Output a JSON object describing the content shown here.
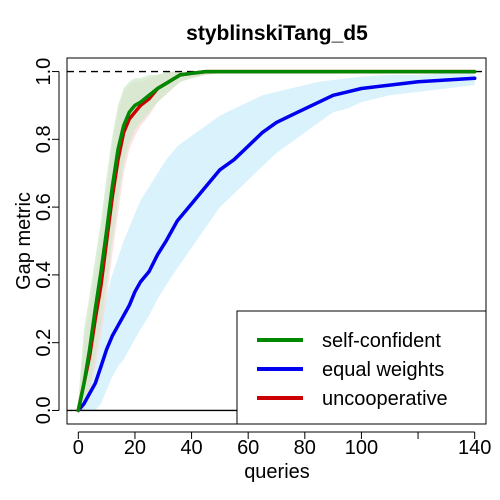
{
  "chart_data": {
    "type": "line",
    "title": "styblinskiTang_d5",
    "xlabel": "queries",
    "ylabel": "Gap metric",
    "xlim": [
      -4,
      144
    ],
    "ylim": [
      -0.04,
      1.04
    ],
    "xticks": [
      0,
      20,
      40,
      60,
      80,
      100,
      140
    ],
    "xtick_marks": [
      0,
      20,
      40,
      60,
      80,
      100,
      120,
      140
    ],
    "yticks": [
      0.0,
      0.2,
      0.4,
      0.6,
      0.8,
      1.0
    ],
    "ytick_labels": [
      "0.0",
      "0.2",
      "0.4",
      "0.6",
      "0.8",
      "1.0"
    ],
    "reference_lines": [
      {
        "y": 1.0,
        "style": "dashed"
      },
      {
        "y": 0.0,
        "style": "solid"
      }
    ],
    "legend_position": "bottom-right",
    "series": [
      {
        "name": "equal weights",
        "color": "#0000ee",
        "band_color": "#cdeefb",
        "x": [
          0,
          2,
          4,
          6,
          8,
          10,
          12,
          14,
          16,
          18,
          20,
          22,
          25,
          28,
          31,
          35,
          40,
          45,
          50,
          55,
          60,
          65,
          70,
          75,
          80,
          85,
          90,
          95,
          100,
          110,
          120,
          130,
          140
        ],
        "y": [
          0.0,
          0.02,
          0.05,
          0.08,
          0.13,
          0.18,
          0.22,
          0.25,
          0.28,
          0.31,
          0.35,
          0.38,
          0.41,
          0.46,
          0.5,
          0.56,
          0.61,
          0.66,
          0.71,
          0.74,
          0.78,
          0.82,
          0.85,
          0.87,
          0.89,
          0.91,
          0.93,
          0.94,
          0.95,
          0.96,
          0.97,
          0.975,
          0.98
        ],
        "lower": [
          0.0,
          0.0,
          0.0,
          0.0,
          0.02,
          0.06,
          0.1,
          0.13,
          0.15,
          0.18,
          0.21,
          0.24,
          0.28,
          0.33,
          0.37,
          0.42,
          0.48,
          0.54,
          0.6,
          0.64,
          0.68,
          0.72,
          0.76,
          0.79,
          0.82,
          0.85,
          0.88,
          0.89,
          0.91,
          0.93,
          0.94,
          0.95,
          0.96
        ],
        "upper": [
          0.01,
          0.1,
          0.16,
          0.22,
          0.28,
          0.34,
          0.4,
          0.45,
          0.5,
          0.54,
          0.58,
          0.62,
          0.66,
          0.7,
          0.74,
          0.78,
          0.81,
          0.84,
          0.87,
          0.89,
          0.91,
          0.93,
          0.94,
          0.95,
          0.96,
          0.97,
          0.975,
          0.98,
          0.985,
          0.99,
          0.99,
          0.995,
          1.0
        ]
      },
      {
        "name": "uncooperative",
        "color": "#cc0000",
        "band_color": "#fbd8d8",
        "x": [
          0,
          2,
          4,
          6,
          8,
          10,
          12,
          14,
          16,
          18,
          20,
          22,
          25,
          28,
          32,
          36,
          40,
          45,
          50,
          55,
          60,
          80,
          100,
          140
        ],
        "y": [
          0.0,
          0.08,
          0.16,
          0.27,
          0.37,
          0.5,
          0.63,
          0.74,
          0.82,
          0.86,
          0.88,
          0.9,
          0.92,
          0.95,
          0.97,
          0.99,
          0.995,
          1.0,
          1.0,
          1.0,
          1.0,
          1.0,
          1.0,
          1.0
        ],
        "lower": [
          0.0,
          0.0,
          0.05,
          0.13,
          0.22,
          0.33,
          0.46,
          0.58,
          0.7,
          0.77,
          0.81,
          0.84,
          0.87,
          0.91,
          0.94,
          0.97,
          0.98,
          0.99,
          0.995,
          1.0,
          1.0,
          1.0,
          1.0,
          1.0
        ],
        "upper": [
          0.02,
          0.2,
          0.3,
          0.4,
          0.52,
          0.65,
          0.78,
          0.88,
          0.94,
          0.96,
          0.97,
          0.97,
          0.98,
          0.99,
          1.0,
          1.0,
          1.0,
          1.0,
          1.0,
          1.0,
          1.0,
          1.0,
          1.0,
          1.0
        ]
      },
      {
        "name": "self-confident",
        "color": "#008800",
        "band_color": "#cfeacb",
        "x": [
          0,
          2,
          4,
          6,
          8,
          10,
          12,
          14,
          16,
          18,
          20,
          22,
          25,
          28,
          32,
          36,
          40,
          45,
          50,
          55,
          60,
          80,
          100,
          140
        ],
        "y": [
          0.0,
          0.08,
          0.18,
          0.3,
          0.41,
          0.53,
          0.66,
          0.77,
          0.84,
          0.88,
          0.9,
          0.91,
          0.93,
          0.95,
          0.97,
          0.99,
          0.995,
          1.0,
          1.0,
          1.0,
          1.0,
          1.0,
          1.0,
          1.0
        ],
        "lower": [
          0.0,
          0.0,
          0.06,
          0.16,
          0.26,
          0.37,
          0.5,
          0.62,
          0.73,
          0.79,
          0.83,
          0.85,
          0.88,
          0.91,
          0.94,
          0.97,
          0.98,
          0.99,
          0.995,
          1.0,
          1.0,
          1.0,
          1.0,
          1.0
        ],
        "upper": [
          0.03,
          0.24,
          0.34,
          0.45,
          0.56,
          0.69,
          0.81,
          0.9,
          0.95,
          0.97,
          0.98,
          0.98,
          0.99,
          0.99,
          1.0,
          1.0,
          1.0,
          1.0,
          1.0,
          1.0,
          1.0,
          1.0,
          1.0,
          1.0
        ]
      }
    ],
    "legend": [
      {
        "name": "self-confident",
        "color": "#008800"
      },
      {
        "name": "equal weights",
        "color": "#0000ee"
      },
      {
        "name": "uncooperative",
        "color": "#cc0000"
      }
    ]
  }
}
